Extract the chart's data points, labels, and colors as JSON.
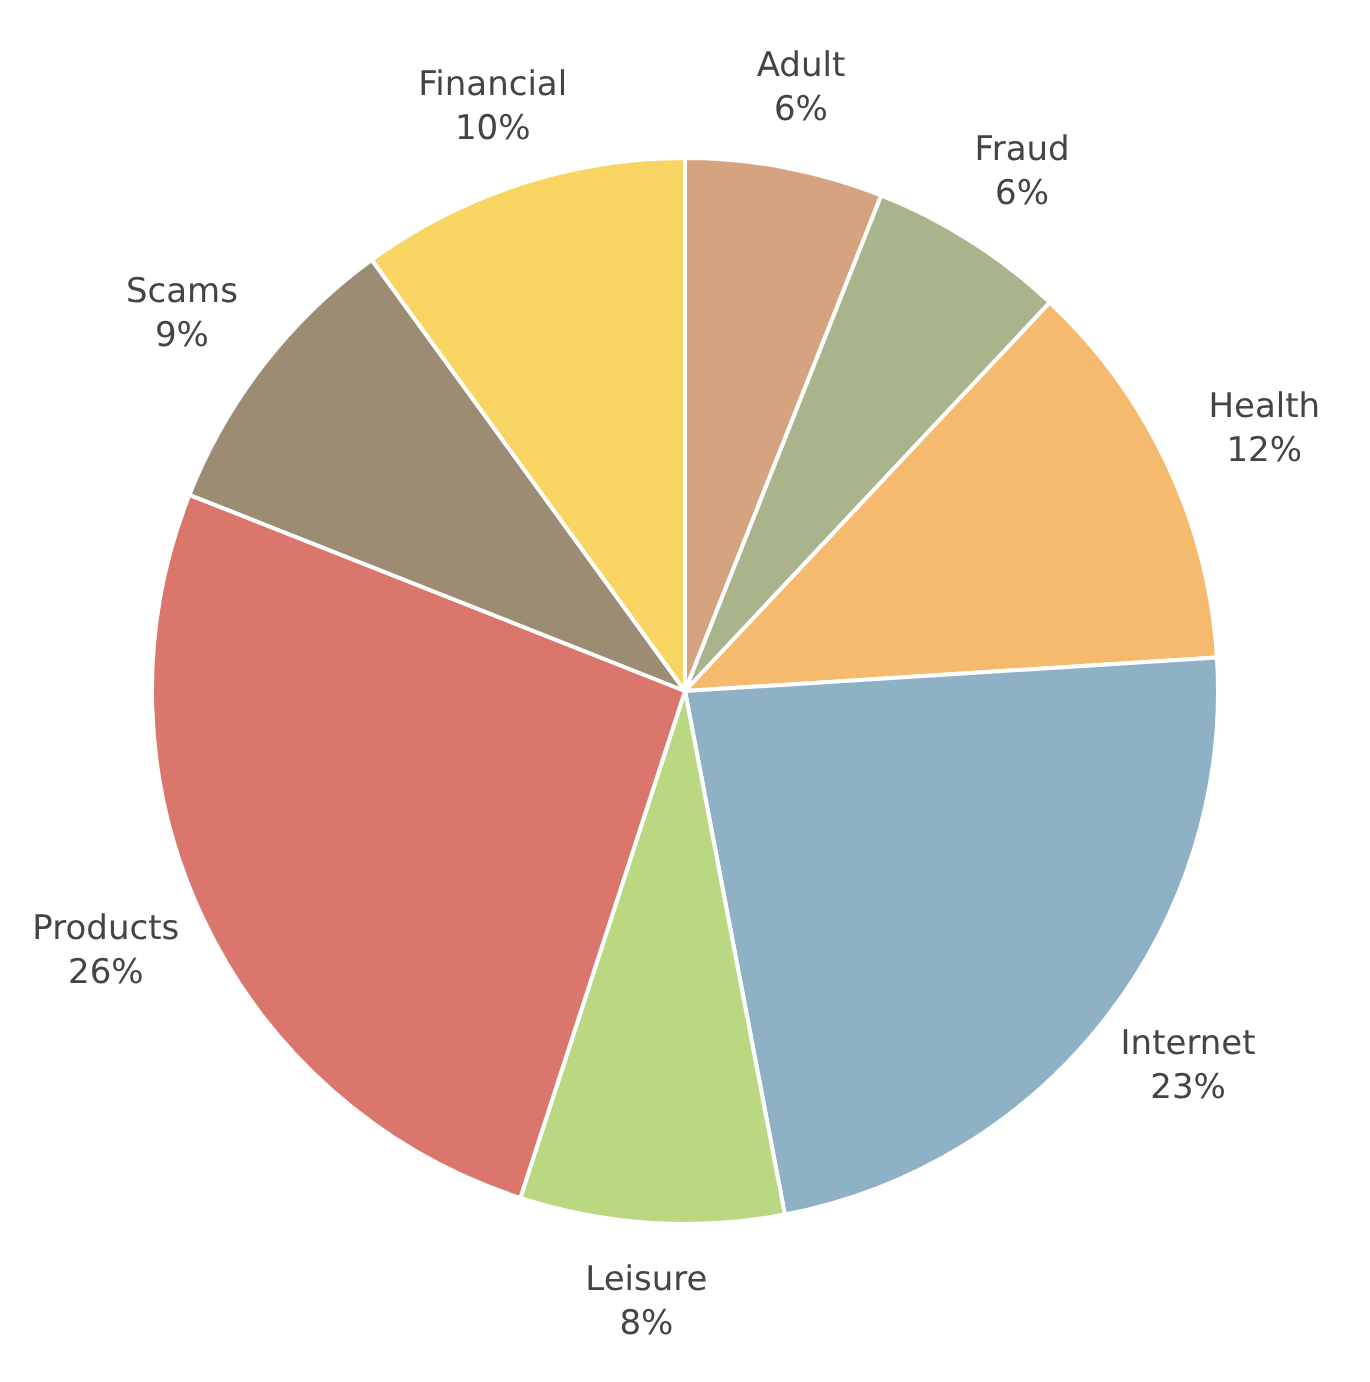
{
  "chart_data": {
    "type": "pie",
    "categories": [
      "Adult",
      "Fraud",
      "Health",
      "Internet",
      "Leisure",
      "Products",
      "Scams",
      "Financial"
    ],
    "values": [
      6,
      6,
      12,
      23,
      8,
      26,
      9,
      10
    ],
    "value_labels": [
      "6%",
      "6%",
      "12%",
      "23%",
      "8%",
      "26%",
      "9%",
      "10%"
    ],
    "colors": [
      "#d6a381",
      "#a9b38c",
      "#f6ba6e",
      "#8fb1c5",
      "#bad782",
      "#da766c",
      "#9c8c74",
      "#f8d463"
    ],
    "legend": false
  }
}
